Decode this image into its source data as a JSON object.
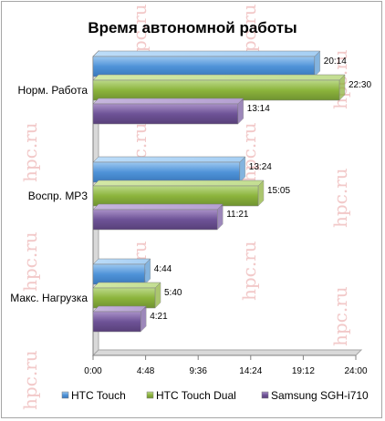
{
  "chart_data": {
    "type": "bar",
    "orientation": "horizontal",
    "title": "Время автономной работы",
    "xlabel": "",
    "ylabel": "",
    "categories": [
      "Норм. Работа",
      "Воспр. MP3",
      "Макс. Нагрузка"
    ],
    "series": [
      {
        "name": "HTC Touch",
        "color": "#5b9bd5",
        "values": [
          20.233,
          13.4,
          4.733
        ],
        "labels": [
          "20:14",
          "13:24",
          "4:44"
        ]
      },
      {
        "name": "HTC Touch Dual",
        "color": "#8fb43e",
        "values": [
          22.5,
          15.083,
          5.667
        ],
        "labels": [
          "22:30",
          "15:05",
          "5:40"
        ]
      },
      {
        "name": "Samsung SGH-i710",
        "color": "#7b5fa3",
        "values": [
          13.233,
          11.35,
          4.35
        ],
        "labels": [
          "13:14",
          "11:21",
          "4:21"
        ]
      }
    ],
    "xlim": [
      0,
      24
    ],
    "xticks": [
      0,
      4.8,
      9.6,
      14.4,
      19.2,
      24
    ],
    "xtick_labels": [
      "0:00",
      "4:48",
      "9:36",
      "14:24",
      "19:12",
      "24:00"
    ],
    "grid": false,
    "legend_position": "bottom",
    "watermark": "hpc.ru"
  }
}
